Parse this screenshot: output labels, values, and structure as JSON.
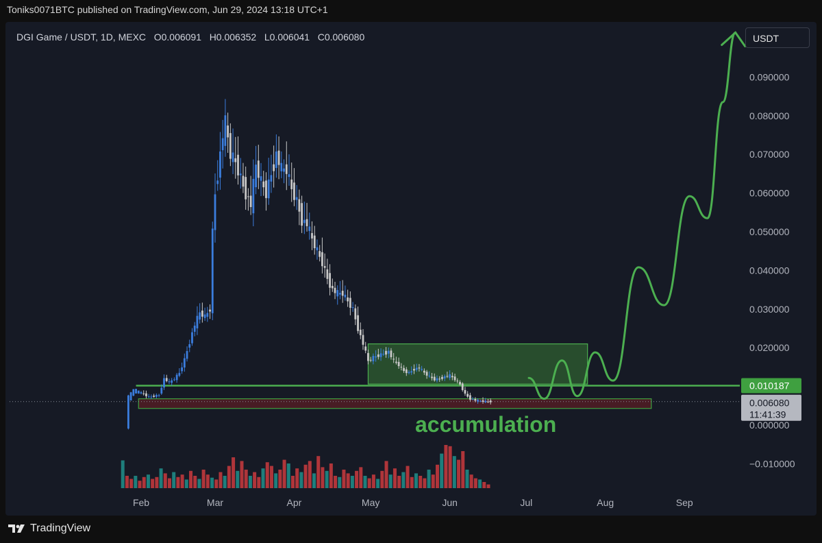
{
  "header": {
    "publisher_line": "Toniks0071BTC published on TradingView.com, Jun 29, 2024 13:18 UTC+1"
  },
  "legend": {
    "symbol": "DGI Game / USDT, 1D, MEXC",
    "open": "O0.006091",
    "high": "H0.006352",
    "low": "L0.006041",
    "close": "C0.006080"
  },
  "currency_button": "USDT",
  "brand": "TradingView",
  "annotation": "accumulation",
  "colors": {
    "up": "#3b7ddd",
    "down": "#c8c8c8",
    "projection": "#4caf50",
    "zone_green": "#2f5f30",
    "zone_red": "#5a1e24",
    "vol_up": "#1f8a86",
    "vol_down": "#c0393d"
  },
  "chart_data": {
    "type": "candlestick",
    "ylim": [
      -0.014,
      0.1
    ],
    "y_ticks": [
      "0.090000",
      "0.080000",
      "0.070000",
      "0.060000",
      "0.050000",
      "0.040000",
      "0.030000",
      "0.020000",
      "0.000000",
      "−0.010000"
    ],
    "y_tick_values": [
      0.09,
      0.08,
      0.07,
      0.06,
      0.05,
      0.04,
      0.03,
      0.02,
      0.0,
      -0.01
    ],
    "x_ticks": [
      "Feb",
      "Mar",
      "Apr",
      "May",
      "Jun",
      "Jul",
      "Aug",
      "Sep"
    ],
    "x_tick_values": [
      0,
      29,
      60,
      90,
      121,
      151,
      182,
      213
    ],
    "x_range": [
      -8,
      232
    ],
    "price_labels": [
      {
        "name": "resistance",
        "value": 0.010187,
        "text": "0.010187"
      },
      {
        "name": "last",
        "value": 0.00608,
        "text": "0.006080",
        "countdown": "11:41:39"
      }
    ],
    "resistance_level": 0.010187,
    "close_level": 0.00608,
    "zones": [
      {
        "name": "accumulation-range",
        "x0": 89,
        "x1": 175,
        "y0": 0.0106,
        "y1": 0.021
      },
      {
        "name": "support-band",
        "x0": -1,
        "x1": 200,
        "y0": 0.0043,
        "y1": 0.0068
      }
    ],
    "projection_path": [
      [
        152,
        0.0122
      ],
      [
        158,
        0.0068
      ],
      [
        165,
        0.0167
      ],
      [
        171,
        0.0075
      ],
      [
        178,
        0.0188
      ],
      [
        185,
        0.0115
      ],
      [
        195,
        0.0408
      ],
      [
        205,
        0.031
      ],
      [
        215,
        0.0592
      ],
      [
        222,
        0.0535
      ],
      [
        228,
        0.0835
      ],
      [
        233,
        0.1015
      ]
    ],
    "price_series": [
      [
        -5,
        0.0
      ],
      [
        -4,
        0.007
      ],
      [
        -2,
        0.009
      ],
      [
        0,
        0.0085
      ],
      [
        2,
        0.008
      ],
      [
        4,
        0.0072
      ],
      [
        6,
        0.0075
      ],
      [
        8,
        0.0078
      ],
      [
        10,
        0.012
      ],
      [
        12,
        0.011
      ],
      [
        14,
        0.012
      ],
      [
        16,
        0.0135
      ],
      [
        18,
        0.017
      ],
      [
        20,
        0.0215
      ],
      [
        22,
        0.026
      ],
      [
        24,
        0.029
      ],
      [
        26,
        0.028
      ],
      [
        28,
        0.03
      ],
      [
        29,
        0.05
      ],
      [
        30,
        0.06
      ],
      [
        31,
        0.065
      ],
      [
        33,
        0.075
      ],
      [
        34,
        0.078
      ],
      [
        36,
        0.07
      ],
      [
        38,
        0.068
      ],
      [
        40,
        0.064
      ],
      [
        42,
        0.06
      ],
      [
        44,
        0.057
      ],
      [
        46,
        0.067
      ],
      [
        48,
        0.063
      ],
      [
        50,
        0.06
      ],
      [
        52,
        0.065
      ],
      [
        54,
        0.07
      ],
      [
        56,
        0.066
      ],
      [
        58,
        0.066
      ],
      [
        60,
        0.061
      ],
      [
        62,
        0.058
      ],
      [
        64,
        0.053
      ],
      [
        66,
        0.052
      ],
      [
        68,
        0.048
      ],
      [
        70,
        0.045
      ],
      [
        72,
        0.042
      ],
      [
        74,
        0.038
      ],
      [
        76,
        0.035
      ],
      [
        78,
        0.034
      ],
      [
        80,
        0.034
      ],
      [
        82,
        0.032
      ],
      [
        84,
        0.03
      ],
      [
        86,
        0.025
      ],
      [
        88,
        0.021
      ],
      [
        90,
        0.0165
      ],
      [
        92,
        0.0175
      ],
      [
        94,
        0.018
      ],
      [
        96,
        0.0185
      ],
      [
        98,
        0.019
      ],
      [
        100,
        0.0165
      ],
      [
        102,
        0.0155
      ],
      [
        104,
        0.014
      ],
      [
        106,
        0.0135
      ],
      [
        108,
        0.0145
      ],
      [
        110,
        0.0148
      ],
      [
        112,
        0.0135
      ],
      [
        114,
        0.0125
      ],
      [
        116,
        0.0118
      ],
      [
        118,
        0.012
      ],
      [
        120,
        0.0125
      ],
      [
        122,
        0.0128
      ],
      [
        124,
        0.0118
      ],
      [
        126,
        0.0105
      ],
      [
        128,
        0.008
      ],
      [
        130,
        0.0068
      ],
      [
        132,
        0.0064
      ],
      [
        134,
        0.0062
      ],
      [
        136,
        0.0061
      ],
      [
        138,
        0.00608
      ]
    ],
    "volume_series": [
      4.5,
      2.0,
      1.5,
      2.0,
      1.2,
      1.8,
      2.2,
      1.5,
      1.8,
      3.2,
      2.4,
      1.6,
      2.6,
      1.8,
      2.2,
      1.4,
      2.8,
      2.0,
      1.5,
      3.0,
      2.2,
      1.7,
      1.4,
      2.6,
      2.0,
      3.6,
      5.0,
      2.8,
      4.4,
      3.0,
      2.0,
      2.6,
      1.8,
      3.2,
      4.2,
      3.6,
      2.4,
      3.0,
      4.6,
      4.0,
      2.0,
      3.2,
      2.6,
      3.8,
      4.4,
      2.4,
      5.2,
      3.4,
      2.8,
      4.0,
      2.0,
      1.8,
      3.0,
      2.4,
      2.0,
      2.8,
      3.4,
      2.0,
      1.6,
      2.2,
      1.5,
      2.8,
      4.4,
      2.2,
      3.2,
      2.0,
      2.6,
      3.6,
      1.8,
      2.4,
      2.0,
      1.6,
      3.0,
      2.2,
      3.8,
      5.6,
      7.0,
      6.8,
      5.2,
      4.6,
      6.0,
      3.0,
      2.2,
      1.6,
      1.4,
      1.0,
      0.6
    ]
  }
}
